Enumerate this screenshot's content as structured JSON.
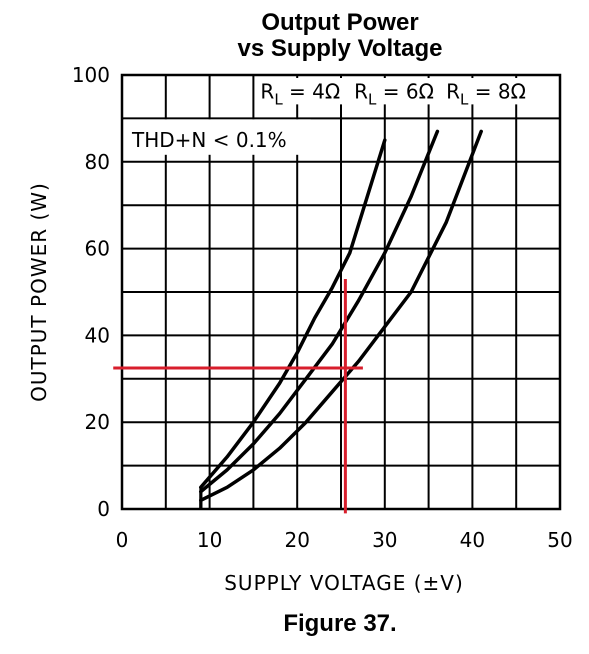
{
  "title_line1": "Output Power",
  "title_line2": "vs Supply Voltage",
  "caption": "Figure 37.",
  "chart_data": {
    "type": "line",
    "xlabel": "SUPPLY VOLTAGE (±V)",
    "ylabel": "OUTPUT POWER (W)",
    "xlim": [
      0,
      50
    ],
    "ylim": [
      0,
      100
    ],
    "x_ticks": [
      "0",
      "10",
      "20",
      "30",
      "40",
      "50"
    ],
    "y_ticks": [
      "0",
      "20",
      "40",
      "60",
      "80",
      "100"
    ],
    "grid": true,
    "annotation": "THD+N < 0.1%",
    "series": [
      {
        "name": "RL = 4Ω",
        "label_main": "R",
        "label_sub": "L",
        "label_rest": "= 4Ω",
        "x": [
          9,
          12,
          15,
          18,
          20,
          22,
          24,
          26,
          28,
          30
        ],
        "y": [
          5,
          12,
          20,
          29,
          36,
          44,
          51,
          59,
          72,
          85
        ]
      },
      {
        "name": "RL = 6Ω",
        "label_main": "R",
        "label_sub": "L",
        "label_rest": "= 6Ω",
        "x": [
          9,
          12,
          15,
          18,
          21,
          24,
          27,
          30,
          33,
          36
        ],
        "y": [
          4,
          9,
          15,
          22,
          30,
          38,
          48,
          59,
          72,
          87
        ]
      },
      {
        "name": "RL = 8Ω",
        "label_main": "R",
        "label_sub": "L",
        "label_rest": "= 8Ω",
        "x": [
          9,
          12,
          15,
          18,
          21,
          24,
          27,
          30,
          33,
          37,
          41
        ],
        "y": [
          2,
          5,
          9,
          14,
          20,
          27,
          34,
          42,
          50,
          66,
          87
        ]
      }
    ],
    "markers": {
      "color": "#d81e2c",
      "vertical_x": 25.5,
      "vertical_y_range": [
        -1,
        53
      ],
      "horizontal_y": 32.5,
      "horizontal_x_range": [
        -1,
        27.5
      ]
    }
  }
}
